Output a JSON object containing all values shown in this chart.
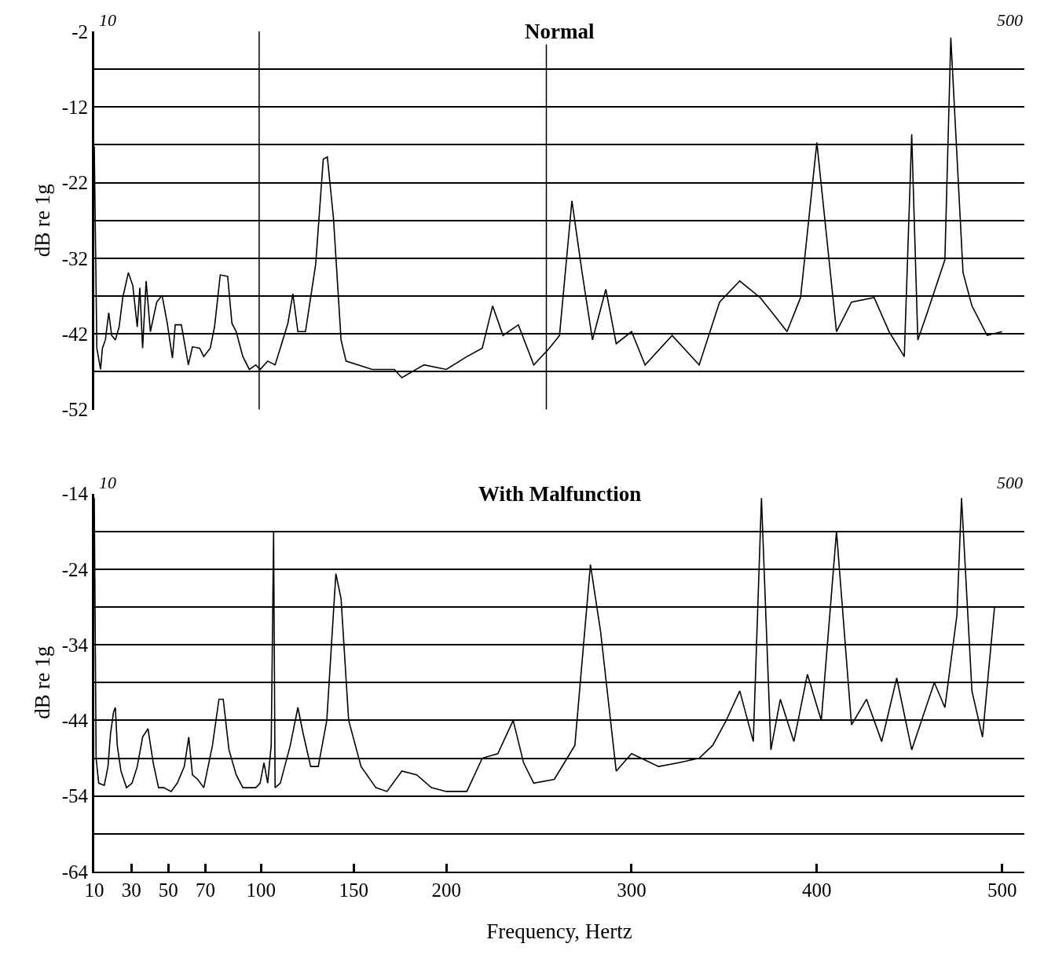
{
  "chart_data": [
    {
      "type": "line",
      "title": "Normal",
      "ylabel": "dB re 1g",
      "tick_labels": "y",
      "grid": "y",
      "marker": "none",
      "line_style": "solid",
      "xlim": [
        10,
        512
      ],
      "xticks": [
        10,
        30,
        50,
        70,
        100,
        150,
        200,
        300,
        400,
        500
      ],
      "ylim": [
        -52,
        -2
      ],
      "yticks": [
        -2,
        {
          "value": -7,
          "label": null
        },
        -12,
        {
          "value": -17,
          "label": null
        },
        -22,
        {
          "value": -27,
          "label": null
        },
        -32,
        {
          "value": -37,
          "label": null
        },
        -42,
        {
          "value": -47,
          "label": null
        },
        -52
      ],
      "ref_lines": [
        {
          "axis": "x",
          "value": 99,
          "label": null
        },
        {
          "axis": "x",
          "value": 254,
          "label": null
        }
      ],
      "annotations": [
        "10",
        "500"
      ],
      "series": [
        {
          "color": "#000000",
          "x": [
            10,
            11.4,
            13.4,
            14.4,
            16,
            17.8,
            19.4,
            21.4,
            23.4,
            25.4,
            28.4,
            30.8,
            33.2,
            34.6,
            36.1,
            38,
            40.3,
            43.7,
            46.6,
            49.4,
            52.2,
            53.7,
            57,
            60.8,
            63,
            66.9,
            69.1,
            72.6,
            74.9,
            78,
            82,
            84.3,
            86.6,
            90.2,
            93.7,
            97.2,
            99.5,
            103.6,
            107.6,
            110.4,
            114.5,
            117.2,
            119.9,
            124,
            129.5,
            133.6,
            135.8,
            139.1,
            143.2,
            145.9,
            160,
            172,
            176,
            188,
            200,
            211.1,
            219.4,
            225,
            230.6,
            238.9,
            247.2,
            255.6,
            261.1,
            267.8,
            273.3,
            278.9,
            286.1,
            291.7,
            300,
            307.3,
            321.9,
            336.5,
            347.5,
            358.4,
            369.4,
            376.6,
            383.9,
            391.2,
            400,
            410.6,
            418.7,
            430.9,
            439,
            447.2,
            451.2,
            454.5,
            459.3,
            469.1,
            472.3,
            478.9,
            483.7,
            491.9,
            500
          ],
          "values": [
            -17.2,
            -43.9,
            -46.7,
            -43.9,
            -42.8,
            -39.2,
            -42.2,
            -42.8,
            -41.1,
            -37.2,
            -33.9,
            -35.6,
            -41.1,
            -35.9,
            -43.9,
            -35,
            -41.7,
            -37.8,
            -36.9,
            -40.6,
            -45.2,
            -40.8,
            -40.8,
            -46.1,
            -43.7,
            -43.9,
            -45,
            -43.9,
            -41.1,
            -34.2,
            -34.4,
            -40.6,
            -41.7,
            -45,
            -46.7,
            -46.1,
            -46.7,
            -45.6,
            -46.1,
            -43.9,
            -40.6,
            -36.7,
            -41.7,
            -41.7,
            -32.8,
            -18.9,
            -18.6,
            -26.7,
            -42.8,
            -45.6,
            -46.7,
            -46.7,
            -47.8,
            -46.1,
            -46.7,
            -45,
            -43.9,
            -38.3,
            -42.2,
            -40.8,
            -46.1,
            -43.9,
            -42.2,
            -24.4,
            -33.9,
            -42.8,
            -36.1,
            -43.3,
            -41.7,
            -46.1,
            -42.2,
            -46.1,
            -37.8,
            -35,
            -37.2,
            -39.4,
            -41.7,
            -37.2,
            -16.7,
            -41.7,
            -37.8,
            -37.2,
            -41.7,
            -45,
            -15.6,
            -42.8,
            -39.4,
            -32.2,
            -2.8,
            -33.9,
            -38.3,
            -42.2,
            -41.7
          ]
        }
      ]
    },
    {
      "type": "line",
      "title": "With Malfunction",
      "xlabel": "Frequency, Hertz",
      "ylabel": "dB re 1g",
      "grid": "y",
      "marker": "none",
      "line_style": "solid",
      "xlim": [
        10,
        512
      ],
      "xticks": [
        10,
        30,
        50,
        70,
        100,
        150,
        200,
        300,
        400,
        500
      ],
      "ylim": [
        -64,
        -14
      ],
      "yticks": [
        -14,
        {
          "value": -19,
          "label": null
        },
        -24,
        {
          "value": -29,
          "label": null
        },
        -34,
        {
          "value": -39,
          "label": null
        },
        -44,
        {
          "value": -49,
          "label": null
        },
        -54,
        {
          "value": -59,
          "label": null
        },
        -64
      ],
      "annotations": [
        "10",
        "500"
      ],
      "series": [
        {
          "color": "#000000",
          "x": [
            10,
            11,
            12.4,
            15.4,
            17.4,
            18.8,
            20.4,
            21.4,
            22.4,
            24.4,
            27.4,
            30.4,
            33.2,
            36.1,
            39,
            41.8,
            44.7,
            47.5,
            51.5,
            54.8,
            58.6,
            61,
            63,
            65.8,
            69.1,
            73.8,
            77.3,
            79.6,
            82.7,
            86.6,
            90.2,
            97.2,
            99.5,
            101.6,
            103.6,
            105.5,
            106.8,
            107.6,
            110.4,
            115.8,
            119.9,
            122.7,
            126.8,
            130.9,
            135.5,
            140.4,
            143.2,
            147.3,
            154,
            162,
            168,
            176,
            184,
            192,
            200,
            211.1,
            219.4,
            227.8,
            236.1,
            241.7,
            247.2,
            258.3,
            269.4,
            277.8,
            283.3,
            291.7,
            300,
            314.6,
            325.6,
            336.5,
            343.8,
            351.1,
            358.4,
            365.7,
            370.1,
            375.2,
            380.3,
            387.6,
            394.9,
            402.4,
            410.6,
            418.7,
            426.8,
            435,
            443.1,
            451.2,
            463.4,
            469.1,
            475.6,
            478.1,
            483.7,
            489.4,
            495.9
          ],
          "values": [
            -14.6,
            -49,
            -52.3,
            -52.6,
            -50.1,
            -45.7,
            -42.9,
            -42.3,
            -47.3,
            -50.7,
            -52.9,
            -52.3,
            -50.1,
            -46.2,
            -45.1,
            -49.6,
            -52.9,
            -52.9,
            -53.4,
            -52.3,
            -50.1,
            -46.2,
            -51.2,
            -51.8,
            -52.9,
            -47.3,
            -41.2,
            -41.2,
            -47.9,
            -51.2,
            -52.9,
            -52.9,
            -52.3,
            -49.6,
            -52.3,
            -47.3,
            -19,
            -52.9,
            -52.3,
            -47.3,
            -42.3,
            -45.7,
            -50.1,
            -50.1,
            -44,
            -24.6,
            -27.9,
            -44,
            -50.1,
            -52.9,
            -53.4,
            -50.7,
            -51.2,
            -52.9,
            -53.4,
            -53.4,
            -49,
            -48.4,
            -44,
            -49.6,
            -52.3,
            -51.8,
            -47.3,
            -23.4,
            -32.3,
            -50.7,
            -48.4,
            -50.1,
            -49.6,
            -49,
            -47.3,
            -44,
            -40.1,
            -46.8,
            -14.6,
            -47.9,
            -41.2,
            -46.8,
            -37.9,
            -44,
            -19,
            -44.6,
            -41.2,
            -46.8,
            -38.4,
            -47.9,
            -39,
            -42.3,
            -30.1,
            -14.6,
            -40.1,
            -46.2,
            -29
          ]
        }
      ]
    }
  ]
}
